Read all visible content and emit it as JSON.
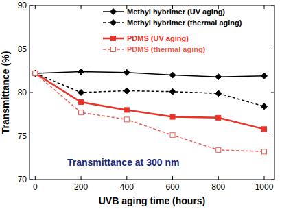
{
  "chart_data": {
    "type": "line",
    "x_label": "UVB aging time (hours)",
    "y_label": "Transmittance (%)",
    "annotation": "Transmittance at 300 nm",
    "x": [
      0,
      200,
      400,
      600,
      800,
      1000
    ],
    "xlim": [
      -25,
      1045
    ],
    "xticks": [
      0,
      200,
      400,
      600,
      800,
      1000
    ],
    "ylim": [
      70,
      90
    ],
    "yticks": [
      70,
      75,
      80,
      85,
      90
    ],
    "grid": false,
    "legend": "upper right",
    "series": [
      {
        "name": "Methyl hybrimer (UV aging)",
        "color": "#000000",
        "marker": "diamond",
        "line_style": "solid",
        "values": [
          82.2,
          82.4,
          82.3,
          82.0,
          81.8,
          81.9
        ]
      },
      {
        "name": "Methyl hybrimer (thermal aging)",
        "color": "#000000",
        "marker": "diamond",
        "line_style": "dashed",
        "values": [
          82.2,
          80.0,
          80.2,
          80.1,
          79.9,
          78.4
        ]
      },
      {
        "name": "PDMS (UV aging)",
        "color": "#e8322a",
        "marker": "square",
        "line_style": "solid",
        "values": [
          82.2,
          78.9,
          78.0,
          77.2,
          77.1,
          75.8
        ]
      },
      {
        "name": "PDMS (thermal aging)",
        "color": "#ee5a50",
        "marker": "square-open",
        "line_style": "dashed",
        "values": [
          82.2,
          77.7,
          76.9,
          75.1,
          73.4,
          73.2
        ]
      }
    ]
  }
}
